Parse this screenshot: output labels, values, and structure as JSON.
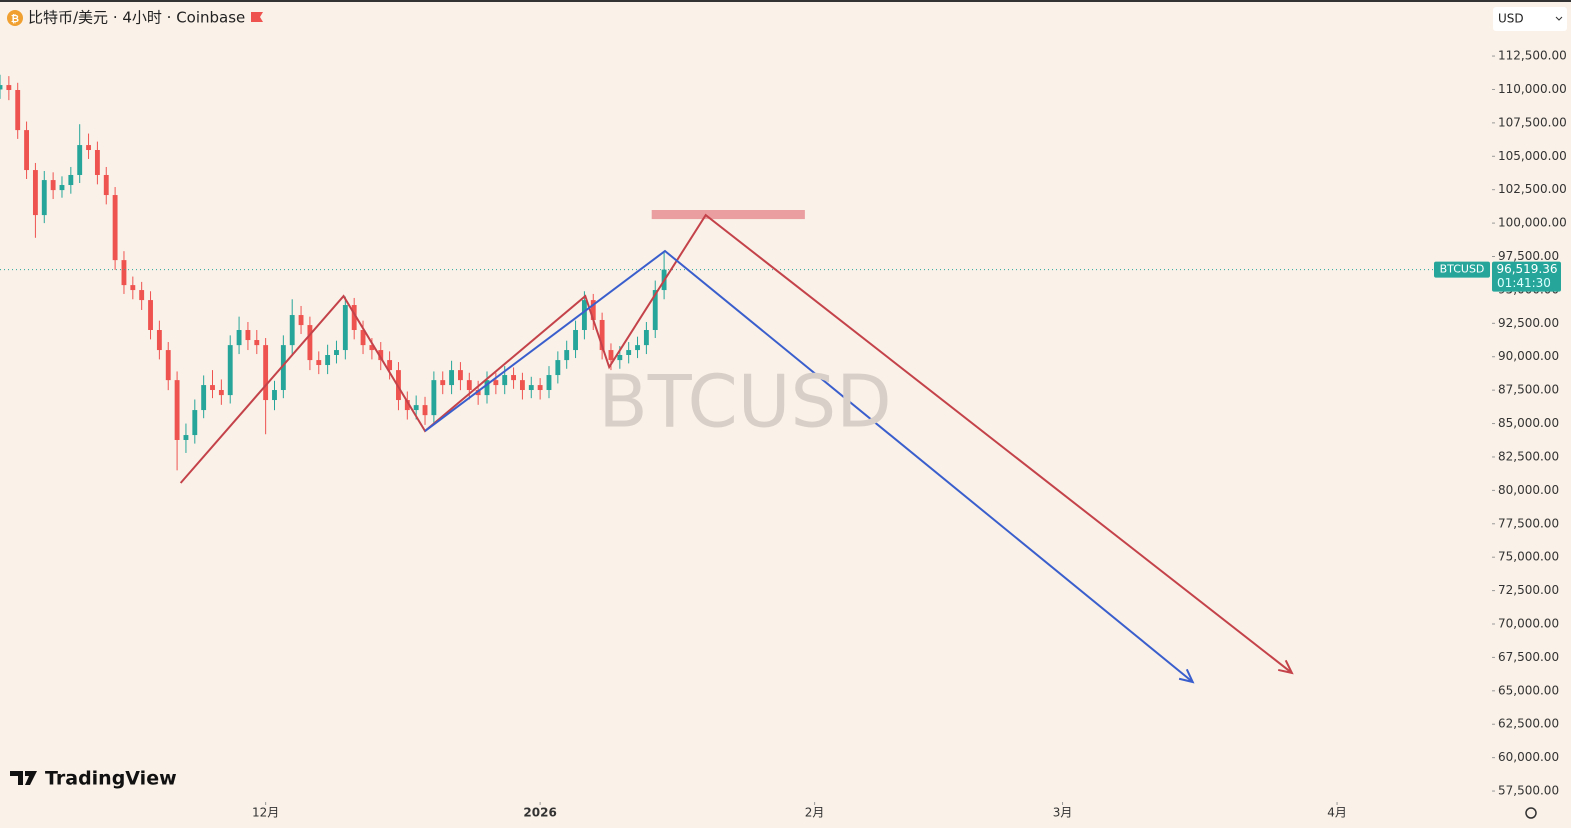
{
  "header": {
    "title": "比特币/美元 · 4小时 · Coinbase",
    "currency": "USD"
  },
  "watermark": "BTCUSD",
  "brand": "TradingView",
  "chart_data": {
    "type": "candlestick",
    "up_color": "#26a69a",
    "down_color": "#ef5350",
    "x": [
      0,
      1,
      2,
      3,
      4,
      5,
      6,
      7,
      8,
      9,
      10,
      11,
      12,
      13,
      14,
      15,
      16,
      17,
      18,
      19,
      20,
      21,
      22,
      23,
      24,
      25,
      26,
      27,
      28,
      29,
      30,
      31,
      32,
      33,
      34,
      35,
      36,
      37,
      38,
      39,
      40,
      41,
      42,
      43,
      44,
      45,
      46,
      47,
      48,
      49,
      50,
      51,
      52,
      53,
      54,
      55,
      56,
      57,
      58,
      59,
      60,
      61,
      62,
      63,
      64,
      65,
      66,
      67,
      68,
      69,
      70,
      71,
      72,
      73,
      74,
      75
    ],
    "open": [
      110000,
      110330,
      109960,
      106960,
      103970,
      100600,
      103220,
      102470,
      102850,
      103600,
      105840,
      105470,
      103600,
      102100,
      97230,
      95360,
      94990,
      94240,
      92000,
      90500,
      88250,
      83770,
      84140,
      86010,
      87880,
      87510,
      87130,
      90870,
      92000,
      91250,
      90870,
      86760,
      87510,
      90870,
      93120,
      92370,
      89750,
      89380,
      90130,
      90500,
      93870,
      92000,
      90870,
      90500,
      89750,
      89000,
      86760,
      86010,
      86380,
      85630,
      88250,
      87880,
      89000,
      88250,
      87510,
      87130,
      88250,
      87880,
      88630,
      88250,
      87510,
      87880,
      87510,
      88630,
      89750,
      90500,
      92000,
      94240,
      92750,
      90500,
      89750,
      90130,
      90500,
      90870,
      92000,
      94990
    ],
    "high": [
      111100,
      111000,
      110500,
      107600,
      104500,
      103900,
      103800,
      103500,
      104200,
      107400,
      106700,
      106100,
      104200,
      102700,
      97900,
      96000,
      95600,
      94900,
      92700,
      91100,
      88900,
      85000,
      86800,
      88600,
      89000,
      88300,
      91600,
      93000,
      92600,
      92000,
      91400,
      88200,
      91600,
      94300,
      93800,
      93000,
      90400,
      90900,
      91200,
      94500,
      94400,
      92700,
      91400,
      91100,
      90400,
      89600,
      87400,
      87100,
      87000,
      88900,
      88900,
      89700,
      89600,
      88800,
      88200,
      88900,
      88800,
      89300,
      89200,
      88800,
      88500,
      88400,
      89300,
      90400,
      91200,
      92700,
      94900,
      94700,
      93300,
      91000,
      90800,
      91100,
      91500,
      92600,
      95700,
      97800
    ],
    "low": [
      109300,
      109200,
      106300,
      103300,
      98900,
      100000,
      101800,
      101900,
      102200,
      103000,
      104800,
      102900,
      101400,
      96500,
      94700,
      94300,
      93500,
      91300,
      89800,
      87500,
      81500,
      82800,
      83500,
      85400,
      86900,
      86400,
      86500,
      90200,
      90500,
      90200,
      84200,
      86000,
      86900,
      90200,
      91700,
      89000,
      88700,
      88700,
      89500,
      89800,
      91300,
      90200,
      89800,
      89000,
      88300,
      86000,
      85300,
      85300,
      84900,
      85000,
      87200,
      87200,
      87500,
      86800,
      86400,
      86500,
      87200,
      87200,
      87600,
      86800,
      86900,
      86800,
      86900,
      88000,
      89100,
      89900,
      91300,
      92000,
      89800,
      89000,
      89100,
      89500,
      89900,
      90200,
      91400,
      94300
    ],
    "close": [
      110330,
      109960,
      106960,
      103970,
      100600,
      103220,
      102470,
      102850,
      103600,
      105840,
      105470,
      103600,
      102100,
      97230,
      95360,
      94990,
      94240,
      92000,
      90500,
      88250,
      83770,
      84140,
      86010,
      87880,
      87510,
      87130,
      90870,
      92000,
      91250,
      90870,
      86760,
      87510,
      90870,
      93120,
      92370,
      89750,
      89380,
      90130,
      90500,
      93870,
      92000,
      90870,
      90500,
      89750,
      89000,
      86760,
      86010,
      86380,
      85630,
      88250,
      87880,
      89000,
      88250,
      87510,
      87130,
      88250,
      87880,
      88630,
      88250,
      87510,
      87880,
      87510,
      88630,
      89750,
      90500,
      92000,
      94240,
      92750,
      90500,
      89750,
      90130,
      90500,
      90870,
      92000,
      94990,
      96519
    ],
    "xlim": [
      0,
      168.5
    ],
    "xticks": [
      {
        "value": 30,
        "label": "12月"
      },
      {
        "value": 61,
        "label": "2026"
      },
      {
        "value": 92,
        "label": "2月"
      },
      {
        "value": 120,
        "label": "3月"
      },
      {
        "value": 151,
        "label": "4月"
      }
    ],
    "ylim": [
      56830,
      114450
    ],
    "yticks": [
      {
        "value": 57500,
        "label": "57,500.00"
      },
      {
        "value": 60000,
        "label": "60,000.00"
      },
      {
        "value": 62500,
        "label": "62,500.00"
      },
      {
        "value": 65000,
        "label": "65,000.00"
      },
      {
        "value": 67500,
        "label": "67,500.00"
      },
      {
        "value": 70000,
        "label": "70,000.00"
      },
      {
        "value": 72500,
        "label": "72,500.00"
      },
      {
        "value": 75000,
        "label": "75,000.00"
      },
      {
        "value": 77500,
        "label": "77,500.00"
      },
      {
        "value": 80000,
        "label": "80,000.00"
      },
      {
        "value": 82500,
        "label": "82,500.00"
      },
      {
        "value": 85000,
        "label": "85,000.00"
      },
      {
        "value": 87500,
        "label": "87,500.00"
      },
      {
        "value": 90000,
        "label": "90,000.00"
      },
      {
        "value": 92500,
        "label": "92,500.00"
      },
      {
        "value": 95000,
        "label": "95,000.00"
      },
      {
        "value": 97500,
        "label": "97,500.00"
      },
      {
        "value": 100000,
        "label": "100,000.00"
      },
      {
        "value": 102500,
        "label": "102,500.00"
      },
      {
        "value": 105000,
        "label": "105,000.00"
      },
      {
        "value": 107500,
        "label": "107,500.00"
      },
      {
        "value": 110000,
        "label": "110,000.00"
      },
      {
        "value": 112500,
        "label": "112,500.00"
      }
    ],
    "last_price": {
      "symbol": "BTCUSD",
      "value": 96519.36,
      "label": "96,519.36",
      "countdown": "01:41:30",
      "color": "#26a69a"
    },
    "drawings": [
      {
        "color": "#c4434a",
        "x": [
          20.4,
          38.8,
          48.0,
          66.1,
          68.8,
          79.7,
          145.9
        ],
        "y": [
          80550,
          94540,
          84440,
          94540,
          89230,
          100600,
          66340
        ]
      },
      {
        "color": "#3a5fcd",
        "x": [
          48.0,
          75.1,
          134.7
        ],
        "y": [
          84440,
          97910,
          65660
        ]
      }
    ],
    "band": {
      "color": "#e88f93",
      "x": [
        73.6,
        90.9
      ],
      "y": [
        100300,
        100980
      ]
    }
  }
}
